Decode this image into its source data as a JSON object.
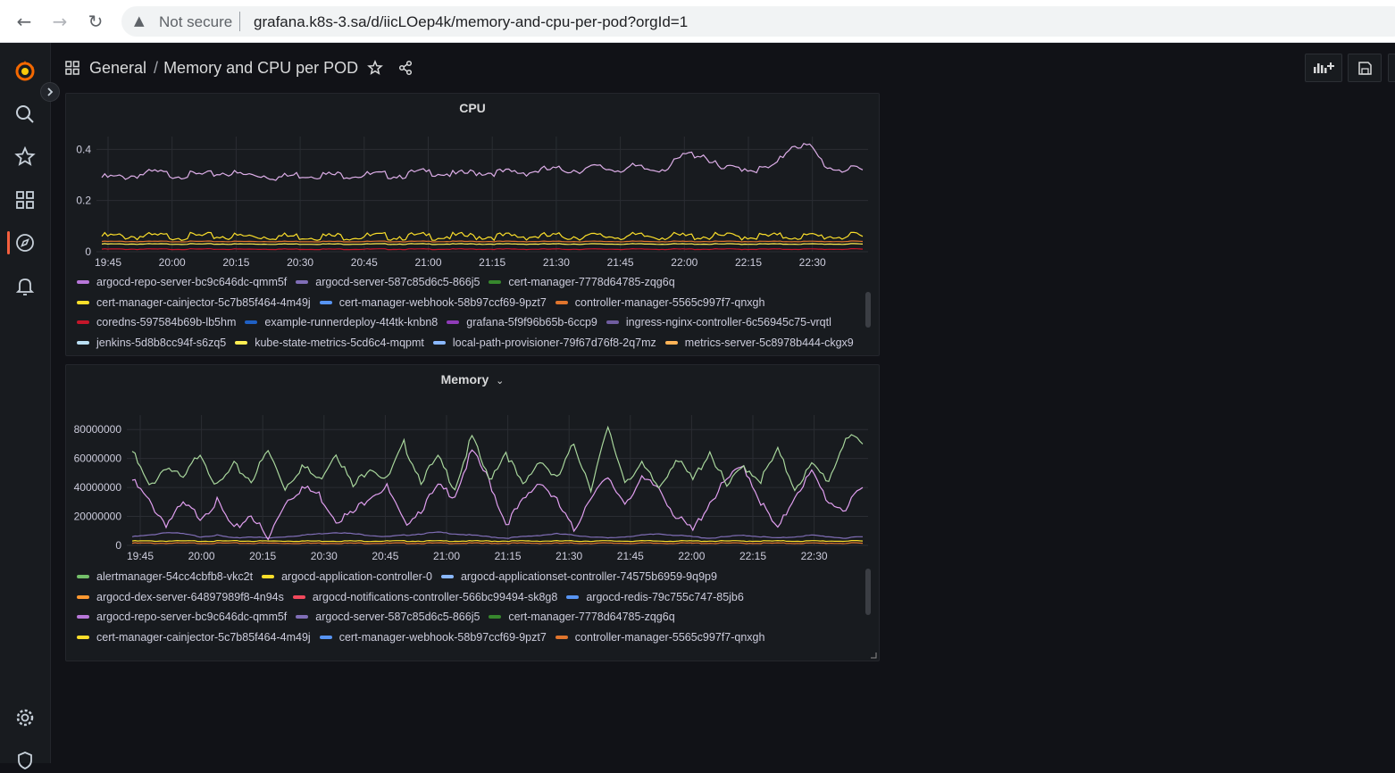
{
  "browser": {
    "security_text": "Not secure",
    "url": "grafana.k8s-3.sa/d/iicLOep4k/memory-and-cpu-per-pod?orgId=1"
  },
  "header": {
    "folder": "General",
    "separator": "/",
    "title": "Memory and CPU per POD"
  },
  "colors": {
    "accent": "#f55f3e",
    "panel_bg": "#181b1f",
    "page_bg": "#111217"
  },
  "cpu_panel": {
    "title": "CPU",
    "legend": [
      [
        {
          "name": "argocd-repo-server-bc9c646dc-qmm5f",
          "color": "#b877d9"
        },
        {
          "name": "argocd-server-587c85d6c5-866j5",
          "color": "#806eb7"
        },
        {
          "name": "cert-manager-7778d64785-zqg6q",
          "color": "#37872d"
        }
      ],
      [
        {
          "name": "cert-manager-cainjector-5c7b85f464-4m49j",
          "color": "#fade2a"
        },
        {
          "name": "cert-manager-webhook-58b97ccf69-9pzt7",
          "color": "#5794f2"
        },
        {
          "name": "controller-manager-5565c997f7-qnxgh",
          "color": "#e0752d"
        }
      ],
      [
        {
          "name": "coredns-597584b69b-lb5hm",
          "color": "#c4162a"
        },
        {
          "name": "example-runnerdeploy-4t4tk-knbn8",
          "color": "#1f60c4"
        },
        {
          "name": "grafana-5f9f96b65b-6ccp9",
          "color": "#8f3bb8"
        },
        {
          "name": "ingress-nginx-controller-6c56945c75-vrqtl",
          "color": "#705da0"
        }
      ],
      [
        {
          "name": "jenkins-5d8b8cc94f-s6zq5",
          "color": "#badff4"
        },
        {
          "name": "kube-state-metrics-5cd6c4-mqpmt",
          "color": "#ffee52"
        },
        {
          "name": "local-path-provisioner-79f67d76f8-2q7mz",
          "color": "#8ab8ff"
        },
        {
          "name": "metrics-server-5c8978b444-ckgx9",
          "color": "#ffb357"
        }
      ]
    ]
  },
  "memory_panel": {
    "title": "Memory",
    "legend": [
      [
        {
          "name": "alertmanager-54cc4cbfb8-vkc2t",
          "color": "#73bf69"
        },
        {
          "name": "argocd-application-controller-0",
          "color": "#fade2a"
        },
        {
          "name": "argocd-applicationset-controller-74575b6959-9q9p9",
          "color": "#8ab8ff"
        }
      ],
      [
        {
          "name": "argocd-dex-server-64897989f8-4n94s",
          "color": "#ff9830"
        },
        {
          "name": "argocd-notifications-controller-566bc99494-sk8g8",
          "color": "#f2495c"
        },
        {
          "name": "argocd-redis-79c755c747-85jb6",
          "color": "#5794f2"
        }
      ],
      [
        {
          "name": "argocd-repo-server-bc9c646dc-qmm5f",
          "color": "#b877d9"
        },
        {
          "name": "argocd-server-587c85d6c5-866j5",
          "color": "#806eb7"
        },
        {
          "name": "cert-manager-7778d64785-zqg6q",
          "color": "#37872d"
        }
      ],
      [
        {
          "name": "cert-manager-cainjector-5c7b85f464-4m49j",
          "color": "#fade2a"
        },
        {
          "name": "cert-manager-webhook-58b97ccf69-9pzt7",
          "color": "#5794f2"
        },
        {
          "name": "controller-manager-5565c997f7-qnxgh",
          "color": "#e0752d"
        }
      ]
    ]
  },
  "chart_data": [
    {
      "type": "line",
      "title": "CPU",
      "x_ticks": [
        "19:45",
        "20:00",
        "20:15",
        "20:30",
        "20:45",
        "21:00",
        "21:15",
        "21:30",
        "21:45",
        "22:00",
        "22:15",
        "22:30"
      ],
      "y_ticks": [
        "0",
        "0.2",
        "0.4"
      ],
      "ylim": [
        0,
        0.45
      ],
      "grid": true,
      "legend": "bottom",
      "series": [
        {
          "name": "argocd-repo-server-bc9c646dc-qmm5f",
          "color": "#ddaee8",
          "values": [
            0.29,
            0.29,
            0.3,
            0.31,
            0.3,
            0.3,
            0.3,
            0.31,
            0.3,
            0.3,
            0.29,
            0.3,
            0.3,
            0.3,
            0.3,
            0.3,
            0.3,
            0.3,
            0.31,
            0.31,
            0.3,
            0.31,
            0.31,
            0.31,
            0.31,
            0.32,
            0.32,
            0.32,
            0.33,
            0.32,
            0.33,
            0.32,
            0.33,
            0.38,
            0.38,
            0.32,
            0.33,
            0.32,
            0.33,
            0.42,
            0.41,
            0.33,
            0.32,
            0.32
          ]
        },
        {
          "name": "cert-manager-cainjector-5c7b85f464-4m49j",
          "color": "#fade2a",
          "values": [
            0.06,
            0.06,
            0.06,
            0.06,
            0.06,
            0.06,
            0.06,
            0.06,
            0.06,
            0.06,
            0.06,
            0.06,
            0.06,
            0.06,
            0.06,
            0.06,
            0.06,
            0.06,
            0.06,
            0.06,
            0.06,
            0.06,
            0.06,
            0.06,
            0.06,
            0.06,
            0.06,
            0.06,
            0.06,
            0.06,
            0.06,
            0.06,
            0.06,
            0.06,
            0.06,
            0.06,
            0.06,
            0.06,
            0.06,
            0.06,
            0.06,
            0.06,
            0.06,
            0.06
          ]
        },
        {
          "name": "controller-manager-5565c997f7-qnxgh",
          "color": "#e0752d",
          "values": [
            0.04,
            0.04,
            0.04,
            0.04,
            0.04,
            0.04,
            0.04,
            0.04,
            0.04,
            0.04,
            0.04,
            0.04,
            0.04,
            0.04,
            0.04,
            0.04,
            0.04,
            0.04,
            0.04,
            0.04,
            0.04,
            0.04,
            0.04,
            0.04,
            0.04,
            0.04,
            0.04,
            0.04,
            0.04,
            0.04,
            0.04,
            0.04,
            0.04,
            0.04,
            0.04,
            0.04,
            0.04,
            0.04,
            0.04,
            0.04,
            0.04,
            0.04,
            0.04,
            0.04
          ]
        },
        {
          "name": "kube-state-metrics-5cd6c4-mqpmt",
          "color": "#ffee52",
          "values": [
            0.03,
            0.03,
            0.03,
            0.03,
            0.03,
            0.03,
            0.03,
            0.03,
            0.03,
            0.03,
            0.03,
            0.03,
            0.03,
            0.03,
            0.03,
            0.03,
            0.03,
            0.03,
            0.03,
            0.03,
            0.03,
            0.03,
            0.03,
            0.03,
            0.03,
            0.03,
            0.03,
            0.03,
            0.03,
            0.03,
            0.03,
            0.03,
            0.03,
            0.03,
            0.03,
            0.03,
            0.03,
            0.03,
            0.03,
            0.03,
            0.03,
            0.03,
            0.03,
            0.03
          ]
        },
        {
          "name": "coredns-597584b69b-lb5hm",
          "color": "#c4162a",
          "values": [
            0.01,
            0.01,
            0.01,
            0.01,
            0.01,
            0.01,
            0.01,
            0.01,
            0.01,
            0.01,
            0.01,
            0.01,
            0.01,
            0.01,
            0.01,
            0.01,
            0.01,
            0.01,
            0.01,
            0.01,
            0.01,
            0.01,
            0.01,
            0.01,
            0.01,
            0.01,
            0.01,
            0.01,
            0.01,
            0.01,
            0.01,
            0.01,
            0.01,
            0.01,
            0.01,
            0.01,
            0.01,
            0.01,
            0.01,
            0.01,
            0.01,
            0.01,
            0.01,
            0.01
          ]
        }
      ]
    },
    {
      "type": "line",
      "title": "Memory",
      "x_ticks": [
        "19:45",
        "20:00",
        "20:15",
        "20:30",
        "20:45",
        "21:00",
        "21:15",
        "21:30",
        "21:45",
        "22:00",
        "22:15",
        "22:30"
      ],
      "y_ticks": [
        "0",
        "20000000",
        "40000000",
        "60000000",
        "80000000"
      ],
      "ylim": [
        0,
        90000000
      ],
      "grid": true,
      "legend": "bottom",
      "series": [
        {
          "name": "cert-manager-7778d64785-zqg6q",
          "color": "#a8d69c",
          "values": [
            65000000,
            40000000,
            55000000,
            45000000,
            65000000,
            40000000,
            55000000,
            45000000,
            65000000,
            40000000,
            55000000,
            45000000,
            65000000,
            40000000,
            55000000,
            45000000,
            70000000,
            45000000,
            60000000,
            40000000,
            75000000,
            45000000,
            65000000,
            40000000,
            60000000,
            45000000,
            70000000,
            40000000,
            80000000,
            45000000,
            55000000,
            40000000,
            60000000,
            45000000,
            65000000,
            40000000,
            55000000,
            45000000,
            65000000,
            40000000,
            55000000,
            45000000,
            75000000,
            70000000
          ]
        },
        {
          "name": "argocd-repo-server-bc9c646dc-qmm5f",
          "color": "#e19ff0",
          "values": [
            45000000,
            30000000,
            15000000,
            28000000,
            20000000,
            30000000,
            10000000,
            22000000,
            4000000,
            30000000,
            40000000,
            35000000,
            18000000,
            22000000,
            35000000,
            40000000,
            15000000,
            25000000,
            40000000,
            35000000,
            65000000,
            45000000,
            15000000,
            30000000,
            45000000,
            30000000,
            10000000,
            35000000,
            45000000,
            30000000,
            45000000,
            40000000,
            20000000,
            10000000,
            30000000,
            45000000,
            55000000,
            30000000,
            10000000,
            35000000,
            50000000,
            30000000,
            25000000,
            40000000
          ]
        },
        {
          "name": "argocd-server-587c85d6c5-866j5",
          "color": "#806eb7",
          "values": [
            6000000,
            7000000,
            9000000,
            8000000,
            6000000,
            7000000,
            5000000,
            6000000,
            5000000,
            6000000,
            7000000,
            8000000,
            9000000,
            8000000,
            7000000,
            6000000,
            7000000,
            8000000,
            9000000,
            8000000,
            7000000,
            6000000,
            5000000,
            6000000,
            7000000,
            8000000,
            7000000,
            6000000,
            5000000,
            6000000,
            7000000,
            8000000,
            7000000,
            6000000,
            5000000,
            6000000,
            7000000,
            6000000,
            5000000,
            6000000,
            7000000,
            6000000,
            5000000,
            6000000
          ]
        },
        {
          "name": "argocd-application-controller-0",
          "color": "#fade2a",
          "values": [
            3000000,
            3000000,
            3000000,
            3000000,
            3000000,
            3000000,
            3000000,
            3000000,
            3000000,
            3000000,
            3000000,
            3000000,
            3000000,
            3000000,
            3000000,
            3000000,
            3000000,
            3000000,
            3000000,
            3000000,
            3000000,
            3000000,
            3000000,
            3000000,
            3000000,
            3000000,
            3000000,
            3000000,
            3000000,
            3000000,
            3000000,
            3000000,
            3000000,
            3000000,
            3000000,
            3000000,
            3000000,
            3000000,
            3000000,
            3000000,
            3000000,
            3000000,
            3000000,
            3000000
          ]
        },
        {
          "name": "controller-manager-5565c997f7-qnxgh",
          "color": "#e0752d",
          "values": [
            1500000,
            1500000,
            1500000,
            1500000,
            1500000,
            1500000,
            1500000,
            1500000,
            1500000,
            1500000,
            1500000,
            1500000,
            1500000,
            1500000,
            1500000,
            1500000,
            1500000,
            1500000,
            1500000,
            1500000,
            1500000,
            1500000,
            1500000,
            1500000,
            1500000,
            1500000,
            1500000,
            1500000,
            1500000,
            1500000,
            1500000,
            1500000,
            1500000,
            1500000,
            1500000,
            1500000,
            1500000,
            1500000,
            1500000,
            1500000,
            1500000,
            1500000,
            1500000,
            1500000
          ]
        }
      ]
    }
  ]
}
